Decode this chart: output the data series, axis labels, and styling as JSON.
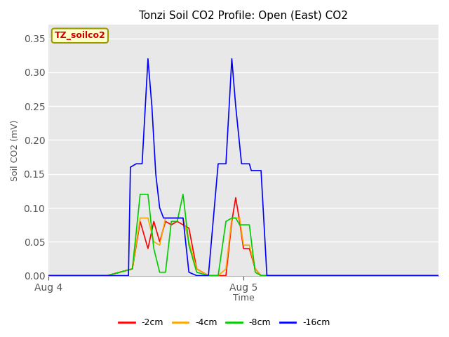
{
  "title": "Tonzi Soil CO2 Profile: Open (East) CO2",
  "ylabel": "Soil CO2 (mV)",
  "xlabel": "Time",
  "label_text": "TZ_soilco2",
  "ylim": [
    0.0,
    0.37
  ],
  "yticks": [
    0.0,
    0.05,
    0.1,
    0.15,
    0.2,
    0.25,
    0.3,
    0.35
  ],
  "plot_bg_color": "#e8e8e8",
  "legend_entries": [
    "-2cm",
    "-4cm",
    "-8cm",
    "-16cm"
  ],
  "legend_colors": [
    "#ff0000",
    "#ffa500",
    "#00cc00",
    "#0000ff"
  ],
  "x_tick_labels": [
    "Aug 4",
    "Aug 5"
  ],
  "x_tick_positions": [
    0.0,
    0.5
  ],
  "xlim": [
    0.0,
    1.0
  ],
  "series": {
    "red": {
      "x": [
        0.0,
        0.15,
        0.215,
        0.235,
        0.255,
        0.27,
        0.285,
        0.3,
        0.315,
        0.33,
        0.345,
        0.36,
        0.38,
        0.41,
        0.435,
        0.455,
        0.47,
        0.48,
        0.49,
        0.5,
        0.515,
        0.53,
        0.545,
        0.56,
        0.575,
        0.59,
        0.6,
        0.61,
        0.63,
        1.0
      ],
      "y": [
        0.0,
        0.0,
        0.01,
        0.08,
        0.04,
        0.08,
        0.05,
        0.08,
        0.075,
        0.08,
        0.075,
        0.07,
        0.01,
        0.0,
        0.0,
        0.0,
        0.08,
        0.115,
        0.08,
        0.04,
        0.04,
        0.01,
        0.0,
        0.0,
        0.0,
        0.0,
        0.0,
        0.0,
        0.0,
        0.0
      ]
    },
    "orange": {
      "x": [
        0.0,
        0.15,
        0.215,
        0.235,
        0.255,
        0.27,
        0.285,
        0.3,
        0.315,
        0.33,
        0.345,
        0.36,
        0.38,
        0.41,
        0.435,
        0.455,
        0.47,
        0.48,
        0.49,
        0.5,
        0.515,
        0.53,
        0.545,
        0.56,
        0.575,
        0.59,
        0.6,
        0.61,
        0.63,
        1.0
      ],
      "y": [
        0.0,
        0.0,
        0.01,
        0.085,
        0.085,
        0.05,
        0.045,
        0.085,
        0.085,
        0.085,
        0.085,
        0.05,
        0.01,
        0.0,
        0.0,
        0.01,
        0.085,
        0.085,
        0.085,
        0.045,
        0.045,
        0.01,
        0.0,
        0.0,
        0.0,
        0.0,
        0.0,
        0.0,
        0.0,
        0.0
      ]
    },
    "green": {
      "x": [
        0.0,
        0.15,
        0.215,
        0.235,
        0.255,
        0.27,
        0.285,
        0.3,
        0.315,
        0.33,
        0.345,
        0.36,
        0.38,
        0.41,
        0.435,
        0.455,
        0.47,
        0.48,
        0.49,
        0.5,
        0.515,
        0.53,
        0.545,
        0.56,
        0.575,
        0.59,
        0.6,
        0.61,
        0.63,
        1.0
      ],
      "y": [
        0.0,
        0.0,
        0.01,
        0.12,
        0.12,
        0.04,
        0.005,
        0.005,
        0.08,
        0.08,
        0.12,
        0.045,
        0.005,
        0.0,
        0.0,
        0.08,
        0.085,
        0.085,
        0.075,
        0.075,
        0.075,
        0.005,
        0.0,
        0.0,
        0.0,
        0.0,
        0.0,
        0.0,
        0.0,
        0.0
      ]
    },
    "blue": {
      "x": [
        0.0,
        0.2,
        0.205,
        0.21,
        0.225,
        0.24,
        0.255,
        0.265,
        0.275,
        0.285,
        0.295,
        0.305,
        0.315,
        0.325,
        0.335,
        0.345,
        0.36,
        0.38,
        0.41,
        0.435,
        0.455,
        0.47,
        0.48,
        0.495,
        0.505,
        0.515,
        0.52,
        0.535,
        0.545,
        0.56,
        0.575,
        0.59,
        0.6,
        0.61,
        0.63,
        1.0
      ],
      "y": [
        0.0,
        0.0,
        0.0,
        0.16,
        0.165,
        0.165,
        0.32,
        0.25,
        0.15,
        0.1,
        0.085,
        0.085,
        0.085,
        0.085,
        0.085,
        0.085,
        0.005,
        0.0,
        0.0,
        0.165,
        0.165,
        0.32,
        0.25,
        0.165,
        0.165,
        0.165,
        0.155,
        0.155,
        0.155,
        0.0,
        0.0,
        0.0,
        0.0,
        0.0,
        0.0,
        0.0
      ]
    }
  }
}
